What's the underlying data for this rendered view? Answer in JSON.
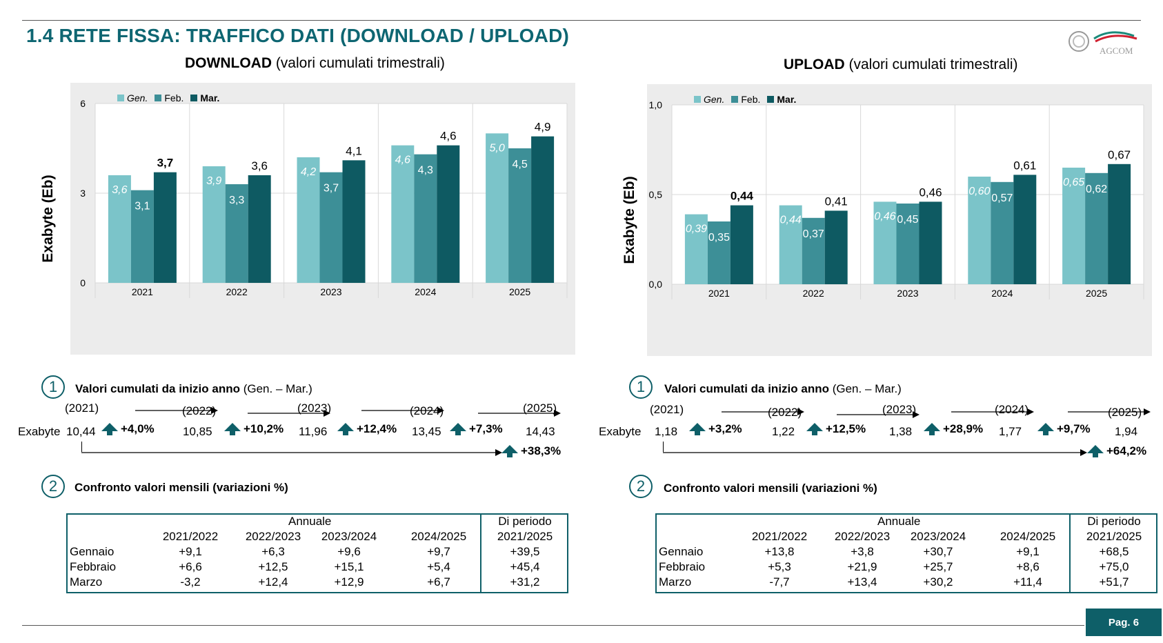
{
  "header": {
    "title": "1.4 RETE FISSA: TRAFFICO DATI (DOWNLOAD / UPLOAD)",
    "logo_text": "AGCOM"
  },
  "footer": {
    "page": "Pag. 6"
  },
  "colors": {
    "gen": "#7bc4c9",
    "feb": "#3d8f97",
    "mar": "#0e5a62",
    "accent": "#0e5f68"
  },
  "download": {
    "subtitle_bold": "DOWNLOAD",
    "subtitle_rest": " (valori cumulati trimestrali)",
    "legend": [
      "Gen.",
      "Feb.",
      "Mar."
    ],
    "ylabel": "Exabyte (Eb)",
    "yticks": [
      "6",
      "3",
      "0"
    ],
    "chart_data": {
      "type": "bar",
      "categories": [
        "2021",
        "2022",
        "2023",
        "2024",
        "2025"
      ],
      "ylim": [
        0,
        6
      ],
      "series": [
        {
          "name": "Gen.",
          "values": [
            3.6,
            3.9,
            4.2,
            4.6,
            5.0
          ],
          "labels": [
            "3,6",
            "3,9",
            "4,2",
            "4,6",
            "5,0"
          ]
        },
        {
          "name": "Feb.",
          "values": [
            3.1,
            3.3,
            3.7,
            4.3,
            4.5
          ],
          "labels": [
            "3,1",
            "3,3",
            "3,7",
            "4,3",
            "4,5"
          ]
        },
        {
          "name": "Mar.",
          "values": [
            3.7,
            3.6,
            4.1,
            4.6,
            4.9
          ],
          "labels": [
            "3,7",
            "3,6",
            "4,1",
            "4,6",
            "4,9"
          ]
        }
      ]
    },
    "section1": {
      "title_bold": "Valori cumulati da inizio anno",
      "title_rest": " (Gen. – Mar.)",
      "row_label": "Exabyte",
      "years": [
        "(2021)",
        "(2022)",
        "(2023)",
        "(2024)",
        "(2025)"
      ],
      "values": [
        "10,44",
        "10,85",
        "11,96",
        "13,45",
        "14,43"
      ],
      "changes": [
        "+4,0%",
        "+10,2%",
        "+12,4%",
        "+7,3%"
      ],
      "total_change": "+38,3%"
    },
    "section2": {
      "title": "Confronto valori mensili (variazioni %)",
      "group_annual": "Annuale",
      "group_period": "Di periodo",
      "columns": [
        "2021/2022",
        "2022/2023",
        "2023/2024",
        "2024/2025",
        "2021/2025"
      ],
      "rows": [
        {
          "label": "Gennaio",
          "values": [
            "+9,1",
            "+6,3",
            "+9,6",
            "+9,7",
            "+39,5"
          ]
        },
        {
          "label": "Febbraio",
          "values": [
            "+6,6",
            "+12,5",
            "+15,1",
            "+5,4",
            "+45,4"
          ]
        },
        {
          "label": "Marzo",
          "values": [
            "-3,2",
            "+12,4",
            "+12,9",
            "+6,7",
            "+31,2"
          ]
        }
      ]
    }
  },
  "upload": {
    "subtitle_bold": "UPLOAD",
    "subtitle_rest": " (valori cumulati trimestrali)",
    "legend": [
      "Gen.",
      "Feb.",
      "Mar."
    ],
    "ylabel": "Exabyte (Eb)",
    "yticks": [
      "1,0",
      "0,5",
      "0,0"
    ],
    "chart_data": {
      "type": "bar",
      "categories": [
        "2021",
        "2022",
        "2023",
        "2024",
        "2025"
      ],
      "ylim": [
        0,
        1.0
      ],
      "series": [
        {
          "name": "Gen.",
          "values": [
            0.39,
            0.44,
            0.46,
            0.6,
            0.65
          ],
          "labels": [
            "0,39",
            "0,44",
            "0,46",
            "0,60",
            "0,65"
          ]
        },
        {
          "name": "Feb.",
          "values": [
            0.35,
            0.37,
            0.45,
            0.57,
            0.62
          ],
          "labels": [
            "0,35",
            "0,37",
            "0,45",
            "0,57",
            "0,62"
          ]
        },
        {
          "name": "Mar.",
          "values": [
            0.44,
            0.41,
            0.46,
            0.61,
            0.67
          ],
          "labels": [
            "0,44",
            "0,41",
            "0,46",
            "0,61",
            "0,67"
          ]
        }
      ]
    },
    "section1": {
      "title_bold": "Valori cumulati da inizio anno",
      "title_rest": " (Gen. – Mar.)",
      "row_label": "Exabyte",
      "years": [
        "(2021)",
        "(2022)",
        "(2023)",
        "(2024)",
        "(2025)"
      ],
      "values": [
        "1,18",
        "1,22",
        "1,38",
        "1,77",
        "1,94"
      ],
      "changes": [
        "+3,2%",
        "+12,5%",
        "+28,9%",
        "+9,7%"
      ],
      "total_change": "+64,2%"
    },
    "section2": {
      "title": "Confronto valori mensili (variazioni %)",
      "group_annual": "Annuale",
      "group_period": "Di periodo",
      "columns": [
        "2021/2022",
        "2022/2023",
        "2023/2024",
        "2024/2025",
        "2021/2025"
      ],
      "rows": [
        {
          "label": "Gennaio",
          "values": [
            "+13,8",
            "+3,8",
            "+30,7",
            "+9,1",
            "+68,5"
          ]
        },
        {
          "label": "Febbraio",
          "values": [
            "+5,3",
            "+21,9",
            "+25,7",
            "+8,6",
            "+75,0"
          ]
        },
        {
          "label": "Marzo",
          "values": [
            "-7,7",
            "+13,4",
            "+30,2",
            "+11,4",
            "+51,7"
          ]
        }
      ]
    }
  },
  "circles": [
    "1",
    "2"
  ]
}
